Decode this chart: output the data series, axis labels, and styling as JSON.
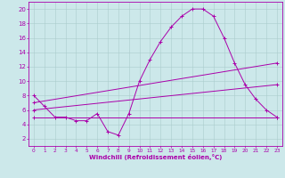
{
  "title": "",
  "xlabel": "Windchill (Refroidissement éolien,°C)",
  "background_color": "#cce8ea",
  "grid_color": "#aacccc",
  "line_color": "#aa00aa",
  "xlim": [
    -0.5,
    23.5
  ],
  "ylim": [
    1.0,
    21.0
  ],
  "xticks": [
    0,
    1,
    2,
    3,
    4,
    5,
    6,
    7,
    8,
    9,
    10,
    11,
    12,
    13,
    14,
    15,
    16,
    17,
    18,
    19,
    20,
    21,
    22,
    23
  ],
  "yticks": [
    2,
    4,
    6,
    8,
    10,
    12,
    14,
    16,
    18,
    20
  ],
  "line1_x": [
    0,
    1,
    2,
    3,
    4,
    5,
    6,
    7,
    8,
    9,
    10,
    11,
    12,
    13,
    14,
    15,
    16,
    17,
    18,
    19,
    20,
    21,
    22,
    23
  ],
  "line1_y": [
    8.0,
    6.5,
    5.0,
    5.0,
    4.5,
    4.5,
    5.5,
    3.0,
    2.5,
    5.5,
    10.0,
    13.0,
    15.5,
    17.5,
    19.0,
    20.0,
    20.0,
    19.0,
    16.0,
    12.5,
    9.5,
    7.5,
    6.0,
    5.0
  ],
  "line2_x": [
    0,
    23
  ],
  "line2_y": [
    7.0,
    12.5
  ],
  "line3_x": [
    0,
    23
  ],
  "line3_y": [
    6.0,
    9.5
  ],
  "line4_x": [
    0,
    23
  ],
  "line4_y": [
    5.0,
    5.0
  ],
  "tick_fontsize_x": 4.2,
  "tick_fontsize_y": 5.0,
  "xlabel_fontsize": 5.0
}
